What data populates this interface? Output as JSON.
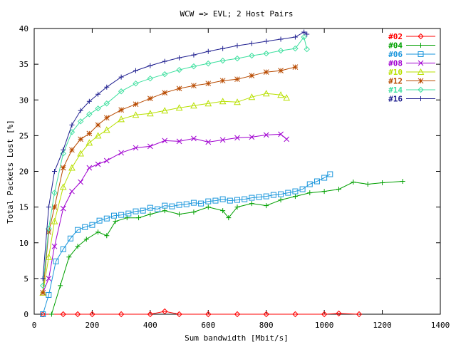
{
  "chart_data": {
    "type": "line",
    "title": "WCW => EVL; 2 Host Pairs",
    "xlabel": "Sum bandwidth [Mbit/s]",
    "ylabel": "Total Packets Lost [%]",
    "xlim": [
      0,
      1400
    ],
    "ylim": [
      0,
      40
    ],
    "xticks": [
      0,
      200,
      400,
      600,
      800,
      1000,
      1200,
      1400
    ],
    "yticks": [
      0,
      5,
      10,
      15,
      20,
      25,
      30,
      35,
      40
    ],
    "legend_position": "top-right",
    "grid": false,
    "series": [
      {
        "name": "#02",
        "color": "#ff0000",
        "marker": "diamond",
        "x": [
          30,
          100,
          150,
          200,
          300,
          400,
          450,
          500,
          600,
          700,
          800,
          900,
          1000,
          1050,
          1120
        ],
        "y": [
          0,
          0,
          0,
          0,
          0,
          0,
          0.4,
          0,
          0,
          0,
          0,
          0,
          0,
          0.1,
          0
        ]
      },
      {
        "name": "#04",
        "color": "#00a000",
        "marker": "plus",
        "x": [
          60,
          90,
          120,
          150,
          180,
          220,
          250,
          280,
          320,
          360,
          400,
          450,
          500,
          550,
          600,
          650,
          670,
          700,
          750,
          800,
          850,
          900,
          950,
          1000,
          1050,
          1100,
          1150,
          1200,
          1270
        ],
        "y": [
          0,
          4,
          8,
          9.5,
          10.5,
          11.5,
          11,
          13,
          13.5,
          13.5,
          14,
          14.5,
          14,
          14.3,
          15,
          14.5,
          13.5,
          15,
          15.5,
          15.2,
          16,
          16.5,
          17,
          17.2,
          17.5,
          18.5,
          18.2,
          18.4,
          18.6
        ],
        "linewidth": 1
      },
      {
        "name": "#06",
        "color": "#1a96dc",
        "marker": "square",
        "x": [
          30,
          50,
          75,
          100,
          125,
          150,
          175,
          200,
          225,
          250,
          275,
          300,
          325,
          350,
          375,
          400,
          425,
          450,
          475,
          500,
          525,
          550,
          575,
          600,
          625,
          650,
          675,
          700,
          725,
          750,
          775,
          800,
          825,
          850,
          875,
          900,
          925,
          950,
          975,
          1000,
          1020
        ],
        "y": [
          0,
          2.7,
          7.4,
          9.1,
          10.6,
          11.8,
          12.2,
          12.5,
          13.1,
          13.4,
          13.8,
          13.9,
          14.1,
          14.4,
          14.5,
          14.9,
          14.7,
          15.2,
          15.1,
          15.3,
          15.4,
          15.6,
          15.5,
          15.8,
          15.9,
          16.1,
          15.9,
          16.0,
          16.1,
          16.3,
          16.4,
          16.5,
          16.7,
          16.8,
          17.0,
          17.2,
          17.5,
          18.2,
          18.6,
          19.1,
          19.6
        ]
      },
      {
        "name": "#08",
        "color": "#a000d0",
        "marker": "x",
        "x": [
          30,
          50,
          70,
          100,
          130,
          160,
          190,
          220,
          250,
          300,
          350,
          400,
          450,
          500,
          550,
          600,
          650,
          700,
          750,
          800,
          850,
          870
        ],
        "y": [
          3,
          5,
          9.5,
          14.8,
          17.2,
          18.5,
          20.5,
          21,
          21.5,
          22.6,
          23.3,
          23.5,
          24.3,
          24.2,
          24.6,
          24.1,
          24.4,
          24.7,
          24.8,
          25.1,
          25.2,
          24.5
        ]
      },
      {
        "name": "#10",
        "color": "#b8e000",
        "marker": "triangle",
        "x": [
          30,
          50,
          70,
          100,
          130,
          160,
          190,
          220,
          250,
          300,
          350,
          400,
          450,
          500,
          550,
          600,
          650,
          700,
          750,
          800,
          850,
          870
        ],
        "y": [
          3,
          8,
          13,
          17.8,
          20.5,
          22.5,
          24,
          25,
          25.8,
          27.3,
          27.9,
          28.1,
          28.5,
          28.9,
          29.2,
          29.5,
          29.8,
          29.7,
          30.4,
          30.9,
          30.7,
          30.3
        ]
      },
      {
        "name": "#12",
        "color": "#b84a00",
        "marker": "star",
        "x": [
          30,
          50,
          70,
          100,
          130,
          160,
          190,
          220,
          250,
          300,
          350,
          400,
          450,
          500,
          550,
          600,
          650,
          700,
          750,
          800,
          850,
          900
        ],
        "y": [
          3,
          11.5,
          15,
          20.5,
          23,
          24.5,
          25.3,
          26.5,
          27.5,
          28.6,
          29.4,
          30.2,
          31,
          31.6,
          32,
          32.3,
          32.7,
          32.9,
          33.4,
          33.9,
          34.1,
          34.6
        ]
      },
      {
        "name": "#14",
        "color": "#40e0a0",
        "marker": "diamond",
        "x": [
          30,
          50,
          70,
          100,
          130,
          160,
          190,
          220,
          250,
          300,
          350,
          400,
          450,
          500,
          550,
          600,
          650,
          700,
          750,
          800,
          850,
          900,
          930,
          940
        ],
        "y": [
          4,
          12,
          17,
          22.5,
          25.5,
          27,
          28,
          28.8,
          29.5,
          31.2,
          32.3,
          33,
          33.6,
          34.2,
          34.7,
          35.1,
          35.5,
          35.8,
          36.2,
          36.5,
          36.9,
          37.2,
          38.8,
          37.1
        ]
      },
      {
        "name": "#16",
        "color": "#202090",
        "marker": "plus",
        "x": [
          30,
          50,
          70,
          100,
          130,
          160,
          190,
          220,
          250,
          300,
          350,
          400,
          450,
          500,
          550,
          600,
          650,
          700,
          750,
          800,
          850,
          900,
          930,
          940
        ],
        "y": [
          5,
          15,
          20,
          23,
          26.5,
          28.5,
          29.8,
          30.8,
          31.8,
          33.2,
          34.1,
          34.8,
          35.4,
          35.9,
          36.3,
          36.8,
          37.2,
          37.6,
          37.9,
          38.2,
          38.5,
          38.8,
          39.5,
          39.2
        ]
      }
    ]
  }
}
